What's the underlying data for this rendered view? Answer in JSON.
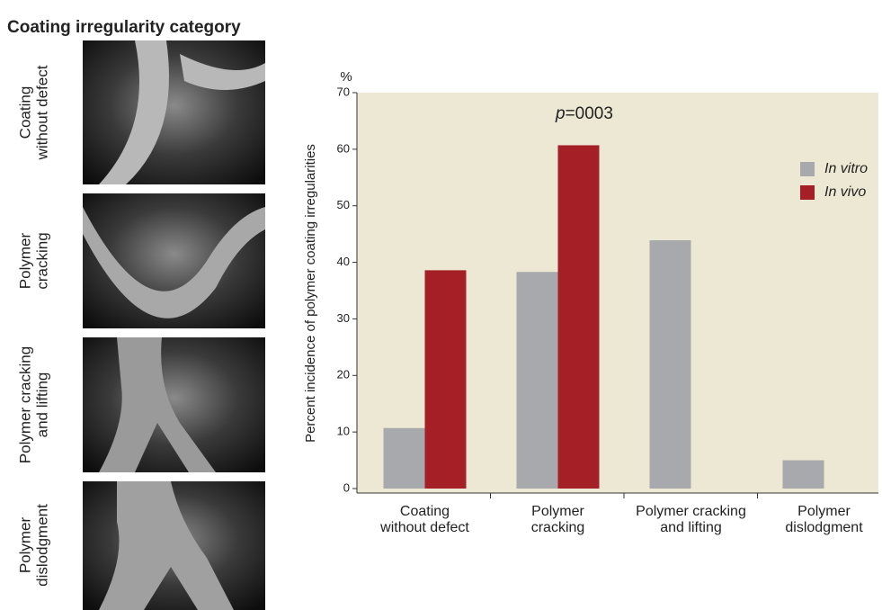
{
  "heading": "Coating irregularity category",
  "images": [
    {
      "label": "Coating\nwithout defect"
    },
    {
      "label": "Polymer\ncracking"
    },
    {
      "label": "Polymer cracking\nand lifting"
    },
    {
      "label": "Polymer\ndislodgment"
    }
  ],
  "chart_data": {
    "type": "bar",
    "y_label": "Percent incidence of polymer coating irregularities",
    "y_unit": "%",
    "annotation": [
      "p",
      "=0003"
    ],
    "categories": [
      "Coating\nwithout defect",
      "Polymer\ncracking",
      "Polymer cracking\nand lifting",
      "Polymer\ndislodgment"
    ],
    "series": [
      {
        "name": "In vitro",
        "color": "#a7a9ac",
        "values": [
          10.7,
          38.3,
          43.9,
          5.0
        ]
      },
      {
        "name": "In vivo",
        "color": "#a51f27",
        "values": [
          38.6,
          60.7,
          0,
          0
        ]
      }
    ],
    "ylim": [
      0,
      70
    ],
    "yticks": [
      0,
      10,
      20,
      30,
      40,
      50,
      60,
      70
    ],
    "legend": "upper right",
    "background": "#ede8d3"
  }
}
